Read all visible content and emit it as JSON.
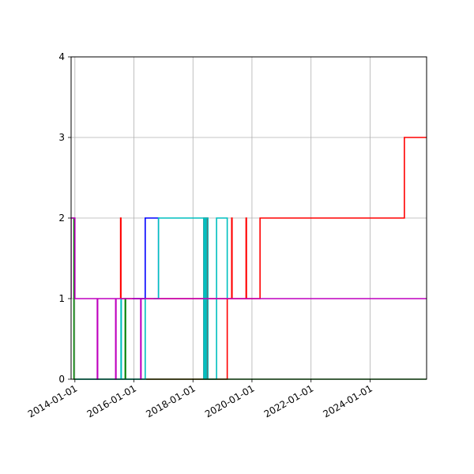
{
  "chart_data": {
    "type": "line",
    "step": true,
    "grid": true,
    "title": "",
    "xlabel": "",
    "ylabel": "",
    "xlim": [
      "2013-11-15",
      "2025-12-01"
    ],
    "ylim": [
      0,
      4
    ],
    "x_ticks": [
      "2014-01-01",
      "2016-01-01",
      "2018-01-01",
      "2020-01-01",
      "2022-01-01",
      "2024-01-01"
    ],
    "y_ticks": [
      "0",
      "1",
      "2",
      "3",
      "4"
    ],
    "series": [
      {
        "color": "#ff0000",
        "points": [
          [
            "2015-07-20",
            1
          ],
          [
            "2015-07-20",
            2
          ],
          [
            "2015-07-25",
            2
          ],
          [
            "2015-07-25",
            1
          ],
          [
            "2019-04-25",
            1
          ],
          [
            "2019-04-25",
            2
          ],
          [
            "2019-04-30",
            2
          ],
          [
            "2019-04-30",
            1
          ],
          [
            "2019-10-20",
            1
          ],
          [
            "2019-10-20",
            2
          ],
          [
            "2019-10-25",
            2
          ],
          [
            "2019-10-25",
            1
          ],
          [
            "2020-04-10",
            1
          ],
          [
            "2020-04-10",
            2
          ],
          [
            "2025-03-01",
            2
          ],
          [
            "2025-03-01",
            3
          ],
          [
            "2025-12-01",
            3
          ]
        ]
      },
      {
        "color": "#ff0000",
        "points": [
          [
            "2016-06-01",
            0
          ],
          [
            "2018-05-15",
            0
          ],
          [
            "2018-05-15",
            2
          ],
          [
            "2018-05-20",
            2
          ],
          [
            "2018-05-20",
            0
          ],
          [
            "2018-06-05",
            0
          ],
          [
            "2018-06-05",
            2
          ],
          [
            "2018-06-10",
            2
          ],
          [
            "2018-06-10",
            0
          ],
          [
            "2018-06-25",
            0
          ],
          [
            "2018-06-25",
            2
          ],
          [
            "2018-07-01",
            2
          ],
          [
            "2018-07-01",
            0
          ],
          [
            "2019-03-01",
            0
          ],
          [
            "2019-03-01",
            1
          ]
        ]
      },
      {
        "color": "#0000ff",
        "points": [
          [
            "2015-12-15",
            1
          ],
          [
            "2016-05-20",
            1
          ],
          [
            "2016-05-20",
            2
          ],
          [
            "2016-11-01",
            2
          ],
          [
            "2016-11-01",
            1
          ]
        ]
      },
      {
        "color": "#00bfbf",
        "points": [
          [
            "2016-09-01",
            1
          ],
          [
            "2016-11-01",
            1
          ],
          [
            "2016-11-01",
            2
          ],
          [
            "2018-05-15",
            2
          ],
          [
            "2018-05-15",
            0
          ],
          [
            "2018-05-25",
            0
          ],
          [
            "2018-05-25",
            2
          ],
          [
            "2018-06-05",
            2
          ],
          [
            "2018-06-05",
            0
          ],
          [
            "2018-06-15",
            0
          ],
          [
            "2018-06-15",
            2
          ],
          [
            "2018-07-05",
            2
          ],
          [
            "2018-07-05",
            0
          ],
          [
            "2018-10-20",
            0
          ],
          [
            "2018-10-20",
            2
          ],
          [
            "2019-03-01",
            2
          ],
          [
            "2019-03-01",
            1
          ]
        ]
      },
      {
        "color": "#008000",
        "points": [
          [
            "2013-11-15",
            2
          ],
          [
            "2013-12-20",
            2
          ],
          [
            "2013-12-20",
            0
          ],
          [
            "2015-09-15",
            0
          ],
          [
            "2015-09-15",
            1
          ],
          [
            "2015-09-20",
            1
          ],
          [
            "2015-09-20",
            0
          ],
          [
            "2025-12-01",
            0
          ]
        ]
      },
      {
        "color": "#00bfbf",
        "points": [
          [
            "2014-01-10",
            0
          ],
          [
            "2015-07-25",
            0
          ],
          [
            "2015-07-25",
            1
          ],
          [
            "2015-07-30",
            1
          ],
          [
            "2015-07-30",
            0
          ],
          [
            "2016-05-20",
            0
          ],
          [
            "2016-05-20",
            1
          ],
          [
            "2016-05-25",
            1
          ]
        ]
      },
      {
        "color": "#bf00bf",
        "points": [
          [
            "2013-11-15",
            1
          ],
          [
            "2013-11-15",
            2
          ],
          [
            "2014-01-01",
            2
          ],
          [
            "2014-01-01",
            1
          ],
          [
            "2014-10-05",
            1
          ],
          [
            "2014-10-05",
            0
          ],
          [
            "2014-10-10",
            0
          ],
          [
            "2014-10-10",
            1
          ],
          [
            "2015-05-20",
            1
          ],
          [
            "2015-05-20",
            0
          ],
          [
            "2015-05-25",
            0
          ],
          [
            "2015-05-25",
            1
          ],
          [
            "2016-03-25",
            1
          ],
          [
            "2016-03-25",
            0
          ],
          [
            "2016-03-30",
            0
          ],
          [
            "2016-03-30",
            1
          ],
          [
            "2025-12-01",
            1
          ]
        ]
      }
    ]
  }
}
